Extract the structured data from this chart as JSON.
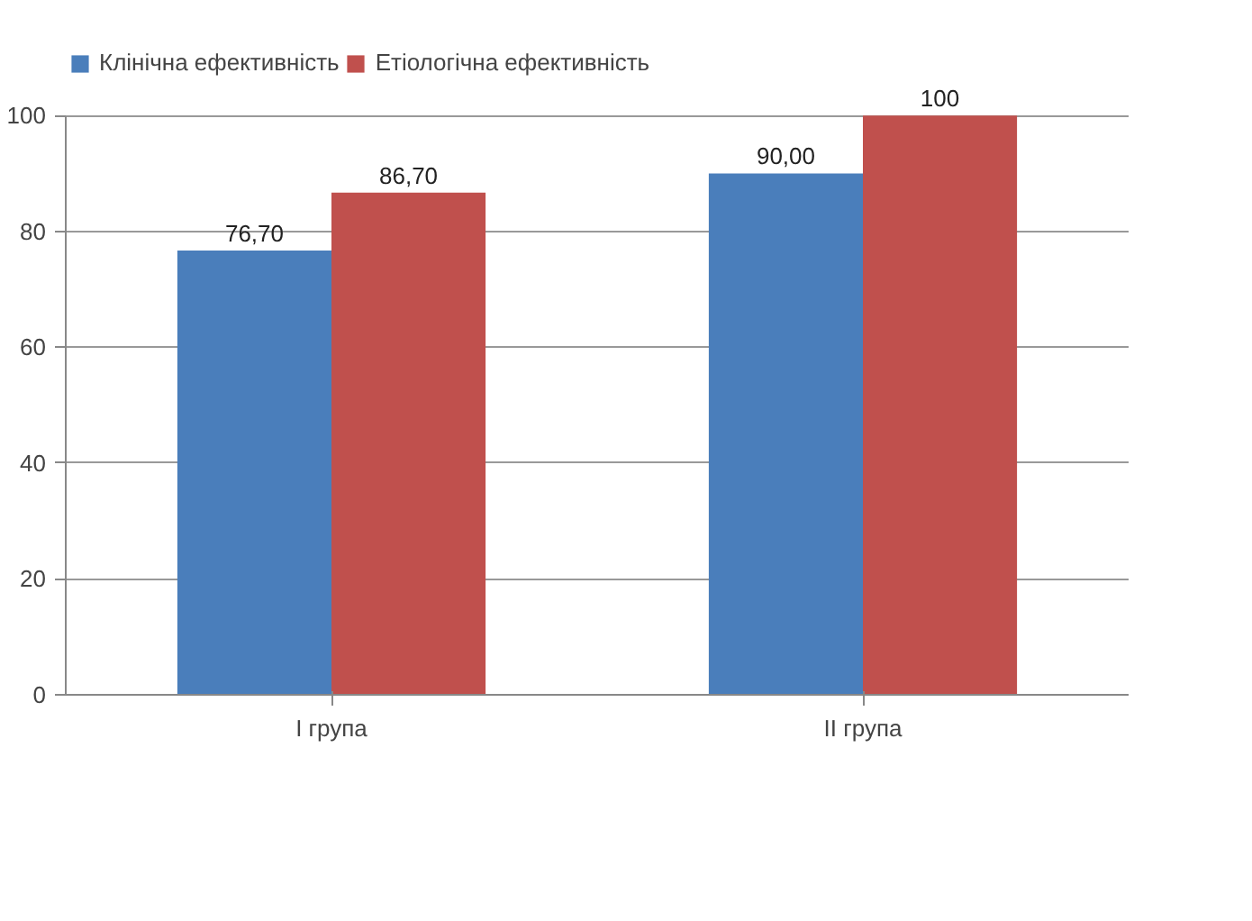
{
  "chart_data": {
    "type": "bar",
    "categories": [
      "I група",
      "II група"
    ],
    "series": [
      {
        "name": "Клінічна ефективність",
        "color": "#4a7ebb",
        "values": [
          76.7,
          90.0
        ],
        "value_labels": [
          "76,70",
          "90,00"
        ]
      },
      {
        "name": "Етіологічна ефективність",
        "color": "#c0504d",
        "values": [
          86.7,
          100
        ],
        "value_labels": [
          "86,70",
          "100"
        ]
      }
    ],
    "ylim": [
      0,
      100
    ],
    "yticks": [
      0,
      20,
      40,
      60,
      80,
      100
    ],
    "grid": "y",
    "legend": "top left"
  }
}
